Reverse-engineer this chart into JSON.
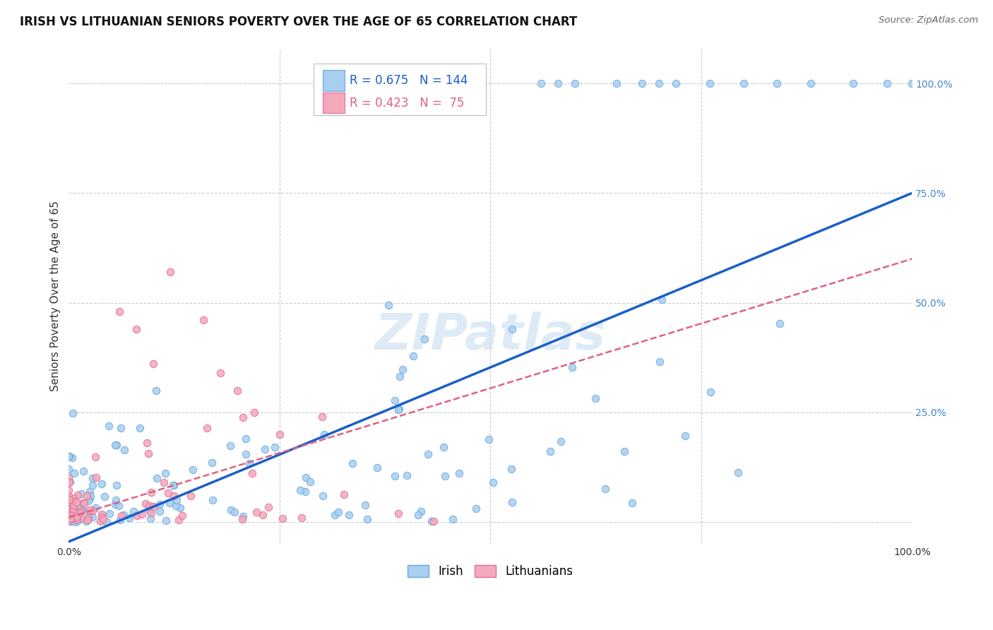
{
  "title": "IRISH VS LITHUANIAN SENIORS POVERTY OVER THE AGE OF 65 CORRELATION CHART",
  "source": "Source: ZipAtlas.com",
  "ylabel": "Seniors Poverty Over the Age of 65",
  "xlim": [
    0.0,
    1.0
  ],
  "ylim": [
    -0.05,
    1.08
  ],
  "xtick_labels": [
    "0.0%",
    "100.0%"
  ],
  "ytick_values": [
    0.0,
    0.25,
    0.5,
    0.75,
    1.0
  ],
  "ytick_labels": [
    "25.0%",
    "50.0%",
    "75.0%",
    "100.0%"
  ],
  "irish_color": "#a8cef0",
  "irish_edge_color": "#6aaae0",
  "lithuanian_color": "#f4a8bc",
  "lithuanian_edge_color": "#e07090",
  "irish_line_color": "#1a5fc8",
  "lithuanian_line_color": "#e06080",
  "irish_R": 0.675,
  "irish_N": 144,
  "lithuanian_R": 0.423,
  "lithuanian_N": 75,
  "watermark": "ZIPatlas",
  "legend_irish_label": "Irish",
  "legend_lithuanian_label": "Lithuanians",
  "background_color": "#ffffff",
  "grid_color": "#cccccc",
  "irish_line_x0": 0.0,
  "irish_line_y0": -0.045,
  "irish_line_x1": 1.0,
  "irish_line_y1": 0.75,
  "lith_line_x0": 0.0,
  "lith_line_y0": 0.01,
  "lith_line_x1": 1.0,
  "lith_line_y1": 0.6
}
